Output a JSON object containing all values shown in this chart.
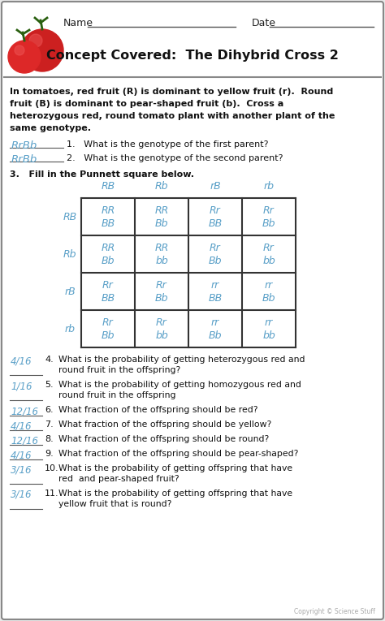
{
  "title": "Concept Covered:  The Dihybrid Cross 2",
  "bg_color": "#e8e8e8",
  "box_bg": "#ffffff",
  "handwriting_color": "#5aa0c8",
  "problem_text_lines": [
    "In tomatoes, red fruit (R) is dominant to yellow fruit (r).  Round",
    "fruit (B) is dominant to pear-shaped fruit (b).  Cross a",
    "heterozygous red, round tomato plant with another plant of the",
    "same genotype."
  ],
  "q1_answer": "RrBb",
  "q1_text": "1.   What is the genotype of the first parent?",
  "q2_answer": "RrBb",
  "q2_text": "2.   What is the genotype of the second parent?",
  "q3_text": "3.   Fill in the Punnett square below.",
  "col_headers": [
    "RB",
    "Rb",
    "rB",
    "rb"
  ],
  "row_headers": [
    "RB",
    "Rb",
    "rB",
    "rb"
  ],
  "punnett_cells": [
    [
      "RR\nBB",
      "RR\nBb",
      "Rr\nBB",
      "Rr\nBb"
    ],
    [
      "RR\nBb",
      "RR\nbb",
      "Rr\nBb",
      "Rr\nbb"
    ],
    [
      "Rr\nBB",
      "Rr\nBb",
      "rr\nBB",
      "rr\nBb"
    ],
    [
      "Rr\nBb",
      "Rr\nbb",
      "rr\nBb",
      "rr\nbb"
    ]
  ],
  "questions": [
    {
      "num": "4.",
      "answer": "4/16",
      "text": "What is the probability of getting heterozygous red and\nround fruit in the offspring?"
    },
    {
      "num": "5.",
      "answer": "1/16",
      "text": "What is the probability of getting homozygous red and\nround fruit in the offspring"
    },
    {
      "num": "6.",
      "answer": "12/16",
      "text": "What fraction of the offspring should be red?"
    },
    {
      "num": "7.",
      "answer": "4/16",
      "text": "What fraction of the offspring should be yellow?"
    },
    {
      "num": "8.",
      "answer": "12/16",
      "text": "What fraction of the offspring should be round?"
    },
    {
      "num": "9.",
      "answer": "4/16",
      "text": "What fraction of the offspring should be pear-shaped?"
    },
    {
      "num": "10.",
      "answer": "3/16",
      "text": "What is the probability of getting offspring that have\nred  and pear-shaped fruit?"
    },
    {
      "num": "11.",
      "answer": "3/16",
      "text": "What is the probability of getting offspring that have\nyellow fruit that is round?"
    }
  ],
  "copyright": "Copyright © Science Stuff"
}
